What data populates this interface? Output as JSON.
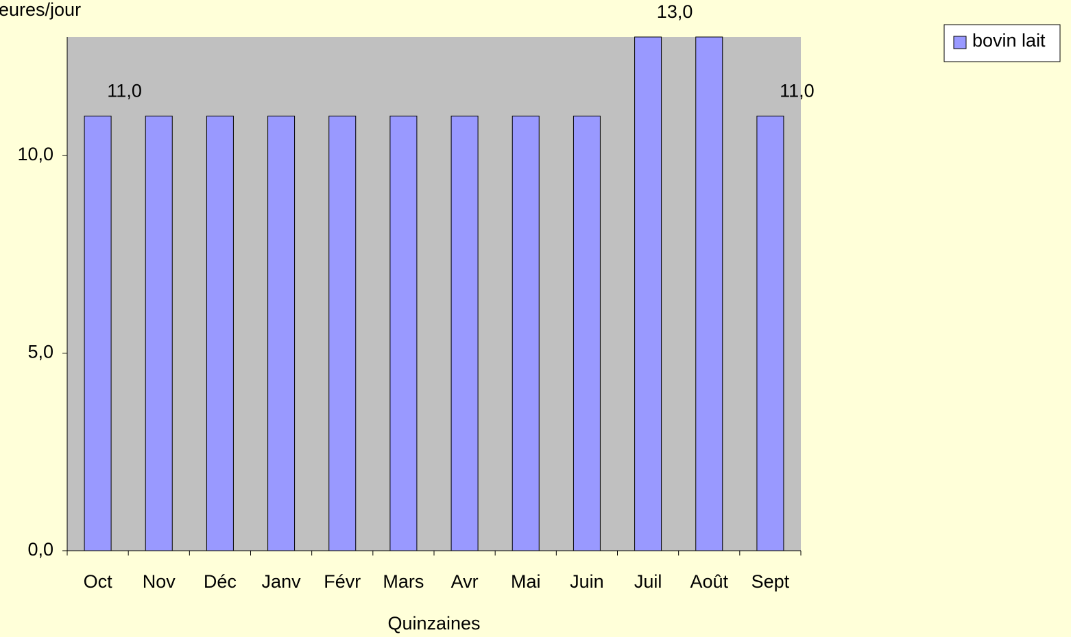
{
  "chart_data": {
    "type": "bar",
    "y_label": "eures/jour",
    "x_label": "Quinzaines",
    "categories": [
      "Oct",
      "Nov",
      "Déc",
      "Janv",
      "Févr",
      "Mars",
      "Avr",
      "Mai",
      "Juin",
      "Juil",
      "Août",
      "Sept"
    ],
    "series": [
      {
        "name": "bovin lait",
        "color": "#9999ff",
        "values": [
          11,
          11,
          11,
          11,
          11,
          11,
          11,
          11,
          11,
          13,
          13,
          11
        ],
        "value_labels": [
          "11,0",
          null,
          null,
          null,
          null,
          null,
          null,
          null,
          null,
          "13,0",
          null,
          "11,0"
        ]
      }
    ],
    "ylim": [
      0,
      13
    ],
    "yticks": [
      {
        "value": 0,
        "label": "0,0"
      },
      {
        "value": 5,
        "label": "5,0"
      },
      {
        "value": 10,
        "label": "10,0"
      }
    ],
    "legend": "top-right"
  }
}
